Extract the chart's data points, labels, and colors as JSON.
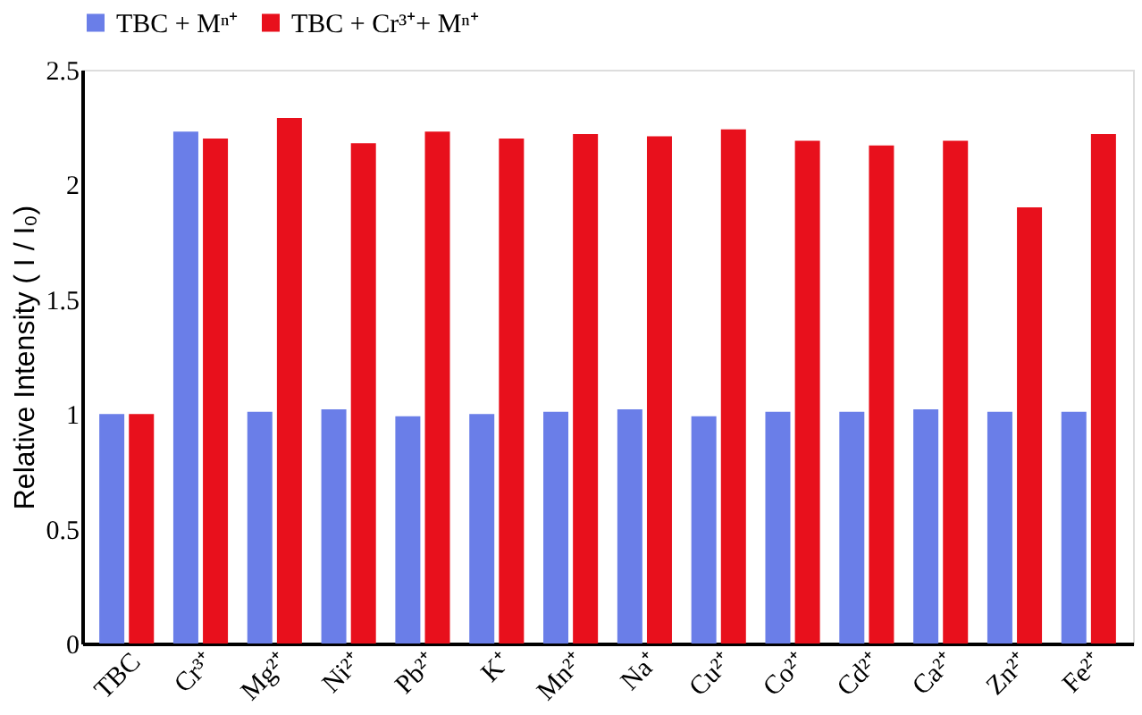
{
  "chart_data": {
    "type": "bar",
    "ylabel": "Relative Intensity ( I / I₀)",
    "categories": [
      "TBC",
      "Cr³⁺",
      "Mg²⁺",
      "Ni²⁺",
      "Pb²⁺",
      "K⁺",
      "Mn²⁺",
      "Na⁺",
      "Cu²⁺",
      "Co²⁺",
      "Cd²⁺",
      "Ca²⁺",
      "Zn²⁺",
      "Fe²⁺"
    ],
    "series": [
      {
        "name": "TBC + Mⁿ⁺",
        "color": "#6a7ee8",
        "values": [
          1.0,
          2.23,
          1.01,
          1.02,
          0.99,
          1.0,
          1.01,
          1.02,
          0.99,
          1.01,
          1.01,
          1.02,
          1.01,
          1.01
        ]
      },
      {
        "name": "TBC + Cr³⁺+ Mⁿ⁺",
        "color": "#e8101c",
        "values": [
          1.0,
          2.2,
          2.29,
          2.18,
          2.23,
          2.2,
          2.22,
          2.21,
          2.24,
          2.19,
          2.17,
          2.19,
          1.9,
          2.22
        ]
      }
    ],
    "ylim": [
      0,
      2.5
    ],
    "yticks": [
      0,
      0.5,
      1,
      1.5,
      2,
      2.5
    ],
    "grid": false,
    "legend": "top"
  }
}
